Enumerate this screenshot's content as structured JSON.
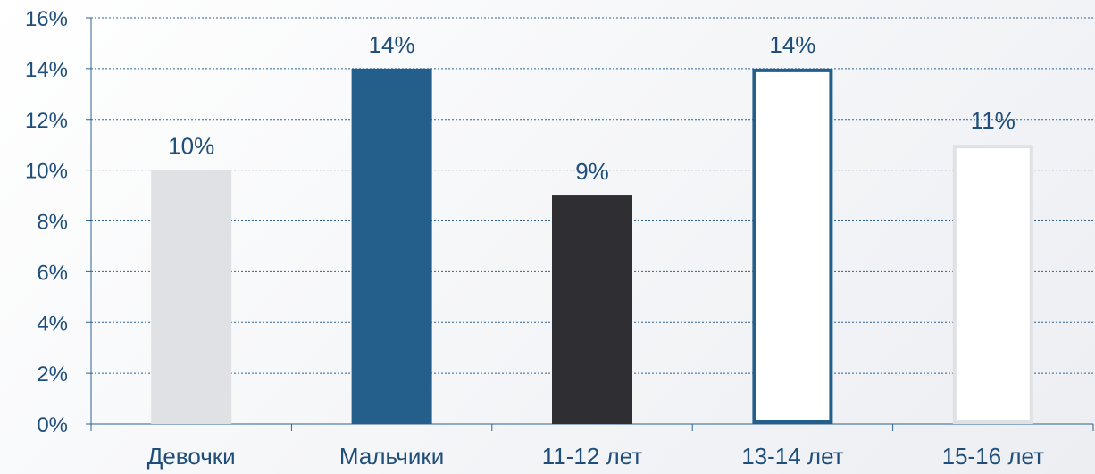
{
  "chart_data": {
    "type": "bar",
    "categories": [
      "Девочки",
      "Мальчики",
      "11-12 лет",
      "13-14 лет",
      "15-16 лет"
    ],
    "values": [
      10,
      14,
      9,
      14,
      11
    ],
    "data_labels": [
      "10%",
      "14%",
      "9%",
      "14%",
      "11%"
    ],
    "y_ticks": [
      "0%",
      "2%",
      "4%",
      "6%",
      "8%",
      "10%",
      "12%",
      "14%",
      "16%"
    ],
    "ylim": [
      0,
      16
    ],
    "grid": true,
    "title": "",
    "xlabel": "",
    "ylabel": "",
    "colors": {
      "bar_fills": [
        "#e0e1e5",
        "#245f8c",
        "#2f2f33",
        "#ffffff",
        "#ffffff"
      ],
      "bar_strokes": [
        "none",
        "none",
        "none",
        "#245f8c",
        "#e0e1e5"
      ],
      "axis": "#2c6391",
      "grid": "#2c6391",
      "text": "#1f4e7a"
    }
  }
}
